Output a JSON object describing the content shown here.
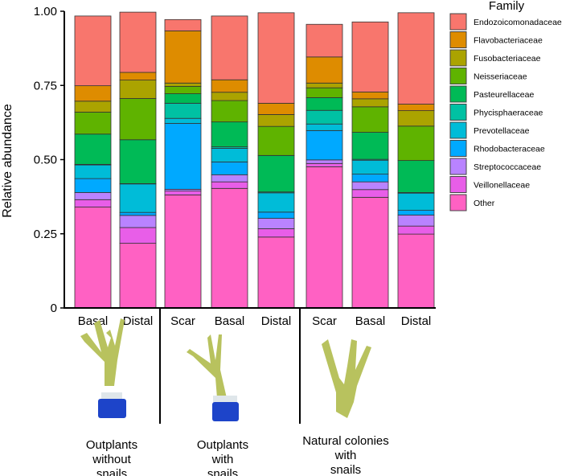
{
  "chart_data": {
    "type": "bar",
    "stacked": true,
    "ylabel": "Relative abundance",
    "ylim": [
      0,
      1
    ],
    "yticks": [
      "0",
      "0.25",
      "0.50",
      "0.75",
      "1.00"
    ],
    "ytick_values": [
      0,
      0.25,
      0.5,
      0.75,
      1.0
    ],
    "categories": [
      "Basal",
      "Distal",
      "Scar",
      "Basal",
      "Distal",
      "Scar",
      "Basal",
      "Distal"
    ],
    "groups": [
      {
        "label": "Outplants without snails",
        "lines": [
          "Outplants",
          "without",
          "snails"
        ],
        "bars": [
          0,
          1
        ]
      },
      {
        "label": "Outplants with snails",
        "lines": [
          "Outplants",
          "with",
          "snails"
        ],
        "bars": [
          2,
          3,
          4
        ]
      },
      {
        "label": "Natural colonies with snails",
        "lines": [
          "Natural colonies",
          "with",
          "snails"
        ],
        "bars": [
          5,
          6,
          7
        ]
      }
    ],
    "legend_title": "Family",
    "legend_position": "right",
    "series": [
      {
        "name": "Other",
        "color": "#ff61c3",
        "values": [
          0.34,
          0.218,
          0.381,
          0.403,
          0.239,
          0.476,
          0.373,
          0.249
        ]
      },
      {
        "name": "Veillonellaceae",
        "color": "#e85ee8",
        "values": [
          0.025,
          0.053,
          0.013,
          0.022,
          0.028,
          0.011,
          0.026,
          0.027
        ]
      },
      {
        "name": "Streptococcaceae",
        "color": "#b983ff",
        "values": [
          0.024,
          0.041,
          0.006,
          0.024,
          0.035,
          0.012,
          0.026,
          0.037
        ]
      },
      {
        "name": "Rhodobacteraceae",
        "color": "#00a9ff",
        "values": [
          0.047,
          0.01,
          0.222,
          0.043,
          0.021,
          0.099,
          0.026,
          0.016
        ]
      },
      {
        "name": "Prevotellaceae",
        "color": "#00bcd8",
        "values": [
          0.046,
          0.096,
          0.017,
          0.046,
          0.065,
          0.022,
          0.047,
          0.058
        ]
      },
      {
        "name": "Phycisphaeraceae",
        "color": "#00c1a3",
        "values": [
          0.002,
          0.001,
          0.051,
          0.005,
          0.003,
          0.046,
          0.003,
          0.002
        ]
      },
      {
        "name": "Pasteurellaceae",
        "color": "#00ba56",
        "values": [
          0.102,
          0.148,
          0.032,
          0.084,
          0.123,
          0.043,
          0.091,
          0.108
        ]
      },
      {
        "name": "Neisseriaceae",
        "color": "#5fb300",
        "values": [
          0.074,
          0.139,
          0.025,
          0.072,
          0.098,
          0.033,
          0.086,
          0.116
        ]
      },
      {
        "name": "Fusobacteriaceae",
        "color": "#aba300",
        "values": [
          0.037,
          0.062,
          0.011,
          0.028,
          0.04,
          0.016,
          0.027,
          0.052
        ]
      },
      {
        "name": "Flavobacteriaceae",
        "color": "#de8c00",
        "values": [
          0.052,
          0.026,
          0.176,
          0.042,
          0.038,
          0.088,
          0.023,
          0.022
        ]
      },
      {
        "name": "Endozoicomonadaceae",
        "color": "#f8766d",
        "values": [
          0.235,
          0.203,
          0.038,
          0.215,
          0.305,
          0.11,
          0.236,
          0.308
        ]
      }
    ]
  }
}
